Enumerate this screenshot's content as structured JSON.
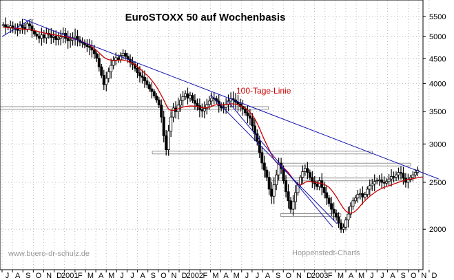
{
  "chart_data": {
    "type": "line",
    "title": "EuroSTOXX 50 auf Wochenbasis",
    "annotation_ma": "100-Tage-Linie",
    "footer_left": "www.buero-dr-schulz.de",
    "footer_right": "Hoppenstedt-Charts",
    "y_scale": "log",
    "ylim": [
      1650,
      5950
    ],
    "y_ticks": [
      "5500",
      "5000",
      "4500",
      "4000",
      "3500",
      "3000",
      "2500",
      "2000"
    ],
    "x_ticks": [
      "J",
      "A",
      "S",
      "O",
      "N",
      "D",
      "2001",
      "F",
      "M",
      "A",
      "M",
      "J",
      "J",
      "A",
      "S",
      "O",
      "N",
      "D",
      "2002",
      "F",
      "M",
      "A",
      "M",
      "J",
      "J",
      "A",
      "S",
      "O",
      "N",
      "D",
      "2003",
      "F",
      "M",
      "A",
      "M",
      "J",
      "J",
      "A",
      "S",
      "O",
      "N",
      "D"
    ],
    "x_start": "2000-07-03",
    "weekly_close": [
      5290,
      5240,
      5220,
      5260,
      5200,
      5180,
      5150,
      5290,
      5220,
      5170,
      5310,
      5260,
      5140,
      5060,
      5010,
      4960,
      5040,
      4970,
      5080,
      5050,
      4980,
      5010,
      4930,
      4960,
      4990,
      5080,
      4960,
      4900,
      4920,
      4970,
      5010,
      4920,
      4870,
      4850,
      4810,
      4770,
      4750,
      4690,
      4610,
      4510,
      4330,
      4160,
      3980,
      4100,
      4230,
      4360,
      4470,
      4520,
      4480,
      4570,
      4620,
      4550,
      4490,
      4420,
      4380,
      4300,
      4210,
      4150,
      4120,
      4050,
      3980,
      3900,
      3850,
      3770,
      3700,
      3610,
      3410,
      3120,
      2920,
      3190,
      3410,
      3560,
      3500,
      3610,
      3690,
      3760,
      3810,
      3730,
      3780,
      3690,
      3640,
      3600,
      3530,
      3510,
      3550,
      3620,
      3680,
      3730,
      3720,
      3680,
      3600,
      3560,
      3570,
      3620,
      3680,
      3720,
      3700,
      3660,
      3630,
      3590,
      3540,
      3480,
      3430,
      3390,
      3270,
      3150,
      3040,
      2880,
      2740,
      2650,
      2560,
      2420,
      2340,
      2470,
      2590,
      2740,
      2670,
      2520,
      2390,
      2290,
      2200,
      2280,
      2380,
      2470,
      2560,
      2630,
      2670,
      2620,
      2560,
      2510,
      2480,
      2450,
      2520,
      2440,
      2380,
      2320,
      2260,
      2200,
      2160,
      2120,
      2060,
      2000,
      2020,
      2090,
      2150,
      2230,
      2290,
      2320,
      2360,
      2370,
      2330,
      2360,
      2420,
      2460,
      2480,
      2510,
      2520,
      2530,
      2500,
      2490,
      2510,
      2540,
      2570,
      2560,
      2590,
      2620,
      2610,
      2550,
      2500,
      2530,
      2560,
      2590,
      2620,
      2650
    ],
    "moving_average_100d": [
      5230,
      5220,
      5215,
      5210,
      5205,
      5200,
      5195,
      5190,
      5185,
      5180,
      5175,
      5170,
      5160,
      5145,
      5130,
      5115,
      5100,
      5085,
      5075,
      5065,
      5055,
      5045,
      5035,
      5025,
      5015,
      5005,
      4995,
      4985,
      4970,
      4955,
      4940,
      4920,
      4900,
      4880,
      4860,
      4835,
      4805,
      4770,
      4725,
      4680,
      4630,
      4580,
      4530,
      4500,
      4480,
      4470,
      4460,
      4465,
      4470,
      4475,
      4470,
      4460,
      4445,
      4425,
      4400,
      4370,
      4335,
      4295,
      4250,
      4205,
      4160,
      4115,
      4060,
      4000,
      3935,
      3860,
      3780,
      3700,
      3610,
      3540,
      3520,
      3520,
      3530,
      3545,
      3560,
      3575,
      3585,
      3590,
      3595,
      3595,
      3590,
      3585,
      3575,
      3565,
      3560,
      3565,
      3575,
      3590,
      3605,
      3615,
      3620,
      3620,
      3620,
      3620,
      3625,
      3630,
      3630,
      3625,
      3615,
      3600,
      3580,
      3560,
      3530,
      3490,
      3440,
      3380,
      3310,
      3230,
      3140,
      3060,
      2990,
      2920,
      2850,
      2790,
      2750,
      2720,
      2700,
      2680,
      2650,
      2620,
      2580,
      2540,
      2500,
      2480,
      2470,
      2480,
      2500,
      2510,
      2510,
      2505,
      2500,
      2495,
      2490,
      2485,
      2475,
      2460,
      2440,
      2410,
      2375,
      2335,
      2290,
      2250,
      2210,
      2180,
      2165,
      2160,
      2165,
      2180,
      2205,
      2235,
      2265,
      2290,
      2315,
      2340,
      2360,
      2380,
      2400,
      2415,
      2430,
      2440,
      2450,
      2460,
      2470,
      2480,
      2490,
      2500,
      2510,
      2520,
      2530,
      2535,
      2540,
      2545,
      2550,
      2555,
      2560,
      2565
    ],
    "trendlines": [
      {
        "from": [
          "2000-07-03",
          5000
        ],
        "to": [
          "2000-09-25",
          5430
        ]
      },
      {
        "from": [
          "2000-09-04",
          5430
        ],
        "to": [
          "2003-12-31",
          2540
        ]
      },
      {
        "from": [
          "2002-03-04",
          3790
        ],
        "to": [
          "2003-03-10",
          2050
        ]
      },
      {
        "from": [
          "2002-04-22",
          3690
        ],
        "to": [
          "2003-02-24",
          2020
        ]
      }
    ],
    "horizontal_bars": [
      {
        "level": 3560,
        "from": "2000-06-15",
        "to": "2002-08-20"
      },
      {
        "level": 2880,
        "from": "2001-09-15",
        "to": "2003-06-20"
      },
      {
        "level": 2720,
        "from": "2002-09-25",
        "to": "2003-10-10"
      },
      {
        "level": 2535,
        "from": "2002-08-30",
        "to": "2003-10-10"
      },
      {
        "level": 2140,
        "from": "2002-09-25",
        "to": "2003-03-20"
      }
    ]
  }
}
